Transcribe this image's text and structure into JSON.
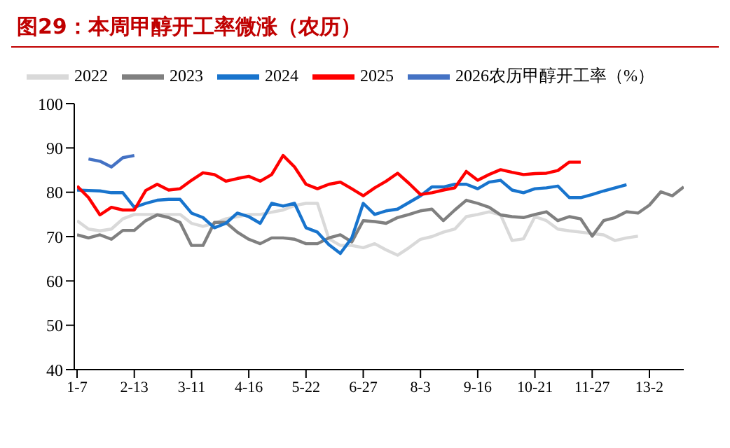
{
  "chart_data": {
    "type": "line",
    "title": "图29：本周甲醇开工率微涨（农历）",
    "categories": [
      "1-7",
      null,
      null,
      null,
      null,
      "2-13",
      null,
      null,
      null,
      null,
      "3-11",
      null,
      null,
      null,
      null,
      "4-16",
      null,
      null,
      null,
      null,
      "5-22",
      null,
      null,
      null,
      null,
      "6-27",
      null,
      null,
      null,
      null,
      "8-3",
      null,
      null,
      null,
      null,
      "9-16",
      null,
      null,
      null,
      null,
      "10-21",
      null,
      null,
      null,
      null,
      "11-27",
      null,
      null,
      null,
      null,
      "13-2",
      null,
      null,
      null
    ],
    "ylim": [
      40,
      100
    ],
    "yticks": [
      40,
      50,
      60,
      70,
      80,
      90,
      100
    ],
    "legend": "top",
    "series": [
      {
        "name": "2022",
        "color": "#d9d9d9",
        "values": [
          73.6,
          71.7,
          71.3,
          71.7,
          74,
          75,
          75,
          75,
          75,
          75,
          73,
          72.3,
          73,
          74,
          74.5,
          75,
          75,
          75.5,
          76,
          77,
          77.5,
          77.5,
          69.5,
          68,
          68,
          67.5,
          68.4,
          67,
          65.8,
          67.5,
          69.4,
          70,
          71,
          71.7,
          74.5,
          75,
          75.6,
          74.9,
          69.1,
          69.5,
          74.5,
          73.6,
          71.7,
          71.3,
          71,
          70.7,
          70.4,
          69.1,
          69.7,
          70.1,
          null,
          null,
          null,
          null
        ]
      },
      {
        "name": "2023",
        "color": "#808080",
        "values": [
          70.4,
          69.7,
          70.4,
          69.4,
          71.4,
          71.4,
          73.6,
          74.9,
          74.3,
          73.2,
          68,
          68,
          73.2,
          73.2,
          71,
          69.4,
          68.4,
          69.7,
          69.7,
          69.4,
          68.4,
          68.4,
          69.7,
          70.4,
          68.8,
          73.6,
          73.4,
          73,
          74.3,
          75,
          75.8,
          76.2,
          73.6,
          76,
          78.2,
          77.5,
          76.6,
          74.9,
          74.5,
          74.3,
          75,
          75.6,
          73.6,
          74.5,
          74,
          70.1,
          73.6,
          74.3,
          75.6,
          75.3,
          77.1,
          80.1,
          79.2,
          81.2
        ]
      },
      {
        "name": "2024",
        "color": "#1874cd",
        "values": [
          80.5,
          80.4,
          80.3,
          79.9,
          79.9,
          76.6,
          77.5,
          78.2,
          78.4,
          78.4,
          75.3,
          74.3,
          72,
          73,
          75.3,
          74.5,
          73,
          77.5,
          76.9,
          77.5,
          72,
          71,
          68.2,
          66.2,
          69.7,
          77.5,
          75,
          75.8,
          76.2,
          77.7,
          79.2,
          81.2,
          81.2,
          81.8,
          81.8,
          80.8,
          82.3,
          82.7,
          80.5,
          79.9,
          80.8,
          81,
          81.4,
          78.8,
          78.8,
          79.5,
          80.3,
          81,
          81.7,
          null,
          null,
          null,
          null,
          null
        ]
      },
      {
        "name": "2025",
        "color": "#ff0000",
        "values": [
          81.4,
          78.8,
          74.9,
          76.6,
          76,
          76,
          80.4,
          81.8,
          80.5,
          80.8,
          82.7,
          84.4,
          84,
          82.5,
          83.1,
          83.6,
          82.5,
          84,
          88.3,
          85.7,
          81.8,
          80.8,
          81.8,
          82.3,
          80.8,
          79.2,
          81,
          82.5,
          84.3,
          82,
          79.5,
          79.9,
          80.5,
          81,
          84.7,
          82.7,
          84,
          85.1,
          84.5,
          84,
          84.2,
          84.3,
          84.9,
          86.8,
          86.8,
          null,
          null,
          null,
          null,
          null,
          null,
          null,
          null,
          null
        ]
      },
      {
        "name": "2026农历甲醇开工率（%）",
        "color": "#4472c4",
        "values": [
          null,
          87.5,
          87,
          85.7,
          87.8,
          88.3,
          null,
          null,
          null,
          null,
          null,
          null,
          null,
          null,
          null,
          null,
          null,
          null,
          null,
          null,
          null,
          null,
          null,
          null,
          null,
          null,
          null,
          null,
          null,
          null,
          null,
          null,
          null,
          null,
          null,
          null,
          null,
          null,
          null,
          null,
          null,
          null,
          null,
          null,
          null,
          null,
          null,
          null,
          null,
          null,
          null,
          null,
          null,
          null
        ]
      }
    ]
  }
}
